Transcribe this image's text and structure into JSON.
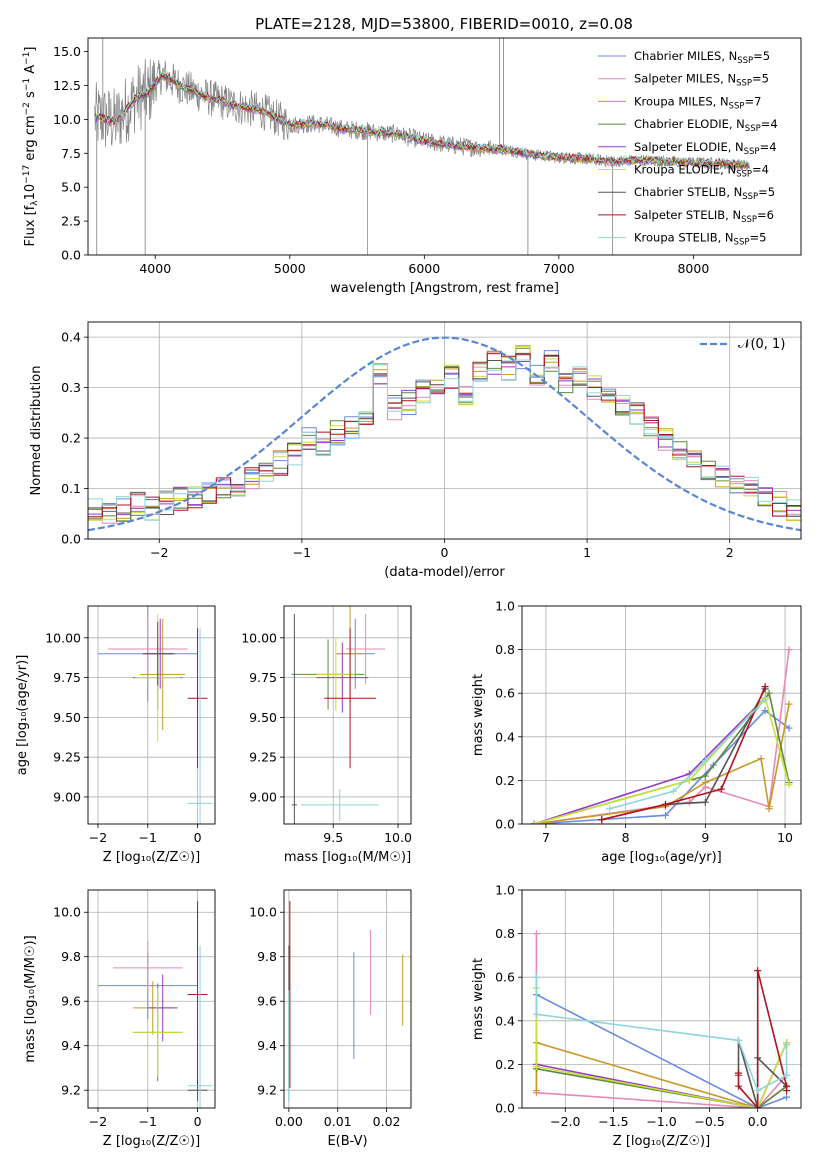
{
  "figure": {
    "title": "PLATE=2128, MJD=53800, FIBERID=0010, z=0.08"
  },
  "models": [
    {
      "name": "Chabrier MILES, N$_{SSP}$=5",
      "label_main": "Chabrier MILES, N",
      "label_sub": "SSP",
      "label_end": "=5",
      "color": "#6a8bde"
    },
    {
      "name": "Salpeter MILES, N$_{SSP}$=5",
      "label_main": "Salpeter MILES, N",
      "label_sub": "SSP",
      "label_end": "=5",
      "color": "#e68ab8"
    },
    {
      "name": "Kroupa MILES, N$_{SSP}$=7",
      "label_main": "Kroupa MILES, N",
      "label_sub": "SSP",
      "label_end": "=7",
      "color": "#c79a2a"
    },
    {
      "name": "Chabrier ELODIE, N$_{SSP}$=4",
      "label_main": "Chabrier ELODIE, N",
      "label_sub": "SSP",
      "label_end": "=4",
      "color": "#5e8a3c"
    },
    {
      "name": "Salpeter ELODIE, N$_{SSP}$=4",
      "label_main": "Salpeter ELODIE, N",
      "label_sub": "SSP",
      "label_end": "=4",
      "color": "#9a39c7"
    },
    {
      "name": "Kroupa ELODIE, N$_{SSP}$=4",
      "label_main": "Kroupa ELODIE, N",
      "label_sub": "SSP",
      "label_end": "=4",
      "color": "#c8e03a"
    },
    {
      "name": "Chabrier STELIB, N$_{SSP}$=5",
      "label_main": "Chabrier STELIB, N",
      "label_sub": "SSP",
      "label_end": "=5",
      "color": "#555555"
    },
    {
      "name": "Salpeter STELIB, N$_{SSP}$=6",
      "label_main": "Salpeter STELIB, N",
      "label_sub": "SSP",
      "label_end": "=6",
      "color": "#b0131d"
    },
    {
      "name": "Kroupa STELIB, N$_{SSP}$=5",
      "label_main": "Kroupa STELIB, N",
      "label_sub": "SSP",
      "label_end": "=5",
      "color": "#8ed6dc"
    }
  ],
  "chart_data": [
    {
      "id": "spectrum",
      "type": "line",
      "title": "PLATE=2128, MJD=53800, FIBERID=0010, z=0.08",
      "xlabel": "wavelength [Angstrom, rest frame]",
      "ylabel_main": "Flux [f",
      "ylabel_sub": "λ",
      "ylabel_rest": "10",
      "ylabel_sup1": "−17",
      "ylabel_mid": " erg cm",
      "ylabel_sup2": "−2",
      "ylabel_s": " s",
      "ylabel_sup3": "−1",
      "ylabel_a": " A",
      "ylabel_sup4": "−1",
      "ylabel_end": "]",
      "xlim": [
        3500,
        8800
      ],
      "ylim": [
        0,
        16
      ],
      "xticks": [
        4000,
        5000,
        6000,
        7000,
        8000
      ],
      "yticks": [
        0.0,
        2.5,
        5.0,
        7.5,
        10.0,
        12.5,
        15.0
      ],
      "ytick_labels": [
        "0.0",
        "2.5",
        "5.0",
        "7.5",
        "10.0",
        "12.5",
        "15.0"
      ],
      "continuum": [
        [
          3550,
          10.2
        ],
        [
          3700,
          9.8
        ],
        [
          3850,
          11.5
        ],
        [
          3950,
          12.0
        ],
        [
          4050,
          13.3
        ],
        [
          4200,
          12.4
        ],
        [
          4400,
          11.6
        ],
        [
          4600,
          11.0
        ],
        [
          4800,
          10.6
        ],
        [
          5000,
          9.6
        ],
        [
          5200,
          9.7
        ],
        [
          5400,
          9.3
        ],
        [
          5600,
          9.1
        ],
        [
          5800,
          8.9
        ],
        [
          6000,
          8.4
        ],
        [
          6200,
          8.1
        ],
        [
          6400,
          7.9
        ],
        [
          6600,
          7.8
        ],
        [
          6800,
          7.4
        ],
        [
          7000,
          7.2
        ],
        [
          7200,
          7.1
        ],
        [
          7400,
          6.9
        ],
        [
          7600,
          7.0
        ],
        [
          7800,
          6.9
        ],
        [
          8000,
          6.8
        ],
        [
          8200,
          6.75
        ],
        [
          8400,
          6.6
        ]
      ],
      "observed_color": "#808080",
      "legend_position": "upper right"
    },
    {
      "id": "residuals",
      "type": "step",
      "xlabel": "(data-model)/error",
      "ylabel": "Normed distribution",
      "xlim": [
        -2.5,
        2.5
      ],
      "ylim": [
        0,
        0.43
      ],
      "xticks": [
        -2,
        -1,
        0,
        1,
        2
      ],
      "xtick_labels": [
        "−2",
        "−1",
        "0",
        "1",
        "2"
      ],
      "yticks": [
        0.0,
        0.1,
        0.2,
        0.3,
        0.4
      ],
      "ytick_labels": [
        "0.0",
        "0.1",
        "0.2",
        "0.3",
        "0.4"
      ],
      "bin_width": 0.1,
      "bin_start": -2.5,
      "histogram": [
        0.06,
        0.05,
        0.06,
        0.07,
        0.06,
        0.07,
        0.08,
        0.08,
        0.09,
        0.1,
        0.11,
        0.12,
        0.13,
        0.15,
        0.17,
        0.2,
        0.19,
        0.21,
        0.22,
        0.24,
        0.33,
        0.26,
        0.27,
        0.29,
        0.3,
        0.32,
        0.29,
        0.33,
        0.35,
        0.34,
        0.36,
        0.33,
        0.35,
        0.31,
        0.32,
        0.3,
        0.28,
        0.26,
        0.25,
        0.22,
        0.2,
        0.18,
        0.16,
        0.14,
        0.12,
        0.11,
        0.1,
        0.08,
        0.07,
        0.06
      ],
      "gaussian_label": "𝒩(0, 1)",
      "gaussian_color": "#5b86d6",
      "legend_position": "upper right"
    },
    {
      "id": "age-vs-Z",
      "type": "scatter",
      "xlabel": "Z [log₁₀(Z/Z☉)]",
      "ylabel": "age  [log₁₀(age/yr)]",
      "xlim": [
        -2.2,
        0.35
      ],
      "ylim": [
        8.83,
        10.2
      ],
      "xticks": [
        -2,
        -1,
        0
      ],
      "xtick_labels": [
        "−2",
        "−1",
        "0"
      ],
      "yticks": [
        9.0,
        9.25,
        9.5,
        9.75,
        10.0
      ],
      "ytick_labels": [
        "9.00",
        "9.25",
        "9.50",
        "9.75",
        "10.00"
      ],
      "points": [
        {
          "model": 0,
          "x": -1.0,
          "y": 9.9,
          "xerr": 1.0,
          "yerr": 0.3
        },
        {
          "model": 1,
          "x": -1.0,
          "y": 9.93,
          "xerr": 0.8,
          "yerr": 0.22
        },
        {
          "model": 2,
          "x": -0.7,
          "y": 9.77,
          "xerr": 0.45,
          "yerr": 0.35
        },
        {
          "model": 3,
          "x": -0.8,
          "y": 9.75,
          "xerr": 0.5,
          "yerr": 0.2
        },
        {
          "model": 4,
          "x": -0.75,
          "y": 9.9,
          "xerr": 0.3,
          "yerr": 0.22
        },
        {
          "model": 5,
          "x": -0.8,
          "y": 9.75,
          "xerr": 0.45,
          "yerr": 0.4
        },
        {
          "model": 6,
          "x": -0.8,
          "y": 9.9,
          "xerr": 0.3,
          "yerr": 0.2
        },
        {
          "model": 7,
          "x": 0.0,
          "y": 9.62,
          "xerr": 0.2,
          "yerr": 0.44
        },
        {
          "model": 8,
          "x": 0.05,
          "y": 8.96,
          "xerr": 0.25,
          "yerr": 1.1
        }
      ]
    },
    {
      "id": "age-vs-mass",
      "type": "scatter",
      "xlabel": "mass [log₁₀(M/M☉)]",
      "ylabel": "",
      "xlim": [
        9.12,
        10.1
      ],
      "ylim": [
        8.83,
        10.2
      ],
      "xticks": [
        9.5,
        10.0
      ],
      "xtick_labels": [
        "9.5",
        "10.0"
      ],
      "yticks": [
        9.0,
        9.25,
        9.5,
        9.75,
        10.0
      ],
      "ytick_labels": [
        "9.00",
        "9.25",
        "9.50",
        "9.75",
        "10.00"
      ],
      "points": [
        {
          "model": 0,
          "x": 9.67,
          "y": 9.9,
          "xerr": 0.15,
          "yerr": 0.22
        },
        {
          "model": 1,
          "x": 9.75,
          "y": 9.93,
          "xerr": 0.15,
          "yerr": 0.22
        },
        {
          "model": 2,
          "x": 9.63,
          "y": 9.9,
          "xerr": 0.1,
          "yerr": 0.3
        },
        {
          "model": 3,
          "x": 9.46,
          "y": 9.77,
          "xerr": 0.28,
          "yerr": 0.22
        },
        {
          "model": 4,
          "x": 9.57,
          "y": 9.75,
          "xerr": 0.2,
          "yerr": 0.22
        },
        {
          "model": 5,
          "x": 9.52,
          "y": 9.77,
          "xerr": 0.15,
          "yerr": 0.23
        },
        {
          "model": 6,
          "x": 9.2,
          "y": 8.95,
          "xerr": 0.02,
          "yerr": 1.2
        },
        {
          "model": 7,
          "x": 9.63,
          "y": 9.62,
          "xerr": 0.2,
          "yerr": 0.44
        },
        {
          "model": 8,
          "x": 9.55,
          "y": 8.95,
          "xerr": 0.3,
          "yerr": 0.1
        }
      ]
    },
    {
      "id": "massweight-vs-age",
      "type": "line",
      "xlabel": "age  [log₁₀(age/yr)]",
      "ylabel": "mass weight",
      "xlim": [
        6.7,
        10.2
      ],
      "ylim": [
        0,
        1.0
      ],
      "xticks": [
        7,
        8,
        9,
        10
      ],
      "xtick_labels": [
        "7",
        "8",
        "9",
        "10"
      ],
      "yticks": [
        0.0,
        0.2,
        0.4,
        0.6,
        0.8,
        1.0
      ],
      "ytick_labels": [
        "0.0",
        "0.2",
        "0.4",
        "0.6",
        "0.8",
        "1.0"
      ],
      "series": [
        {
          "model": 0,
          "x": [
            6.85,
            8.5,
            9.1,
            9.75,
            10.05
          ],
          "y": [
            0.0,
            0.04,
            0.27,
            0.52,
            0.44
          ]
        },
        {
          "model": 1,
          "x": [
            6.85,
            8.8,
            9.0,
            9.8,
            10.05
          ],
          "y": [
            0.0,
            0.1,
            0.17,
            0.08,
            0.8
          ]
        },
        {
          "model": 2,
          "x": [
            6.85,
            8.5,
            9.0,
            9.7,
            9.8,
            10.05
          ],
          "y": [
            0.0,
            0.08,
            0.19,
            0.3,
            0.07,
            0.55
          ]
        },
        {
          "model": 3,
          "x": [
            6.85,
            8.8,
            9.0,
            9.8,
            10.05
          ],
          "y": [
            0.0,
            0.2,
            0.22,
            0.6,
            0.19
          ]
        },
        {
          "model": 4,
          "x": [
            6.85,
            8.8,
            9.75
          ],
          "y": [
            0.0,
            0.23,
            0.58
          ]
        },
        {
          "model": 5,
          "x": [
            6.85,
            8.8,
            9.75,
            10.05
          ],
          "y": [
            0.0,
            0.2,
            0.58,
            0.18
          ]
        },
        {
          "model": 6,
          "x": [
            7.7,
            8.5,
            9.0,
            9.75
          ],
          "y": [
            0.02,
            0.09,
            0.1,
            0.62
          ]
        },
        {
          "model": 7,
          "x": [
            7.7,
            8.5,
            9.2,
            9.75
          ],
          "y": [
            0.02,
            0.09,
            0.16,
            0.63
          ]
        },
        {
          "model": 8,
          "x": [
            7.8,
            8.6,
            9.0,
            9.75
          ],
          "y": [
            0.07,
            0.15,
            0.29,
            0.57
          ]
        }
      ]
    },
    {
      "id": "mass-vs-Z",
      "type": "scatter",
      "xlabel": "Z [log₁₀(Z/Z☉)]",
      "ylabel": "mass [log₁₀(M/M☉)]",
      "xlim": [
        -2.2,
        0.35
      ],
      "ylim": [
        9.12,
        10.1
      ],
      "xticks": [
        -2,
        -1,
        0
      ],
      "xtick_labels": [
        "−2",
        "−1",
        "0"
      ],
      "yticks": [
        9.2,
        9.4,
        9.6,
        9.8,
        10.0
      ],
      "ytick_labels": [
        "9.2",
        "9.4",
        "9.6",
        "9.8",
        "10.0"
      ],
      "points": [
        {
          "model": 0,
          "x": -1.0,
          "y": 9.67,
          "xerr": 1.0,
          "yerr": 0.15
        },
        {
          "model": 1,
          "x": -1.0,
          "y": 9.75,
          "xerr": 0.7,
          "yerr": 0.12
        },
        {
          "model": 2,
          "x": -0.9,
          "y": 9.57,
          "xerr": 0.4,
          "yerr": 0.12
        },
        {
          "model": 3,
          "x": -0.8,
          "y": 9.46,
          "xerr": 0.5,
          "yerr": 0.22
        },
        {
          "model": 4,
          "x": -0.7,
          "y": 9.57,
          "xerr": 0.3,
          "yerr": 0.15
        },
        {
          "model": 5,
          "x": -0.8,
          "y": 9.46,
          "xerr": 0.5,
          "yerr": 0.2
        },
        {
          "model": 6,
          "x": 0.0,
          "y": 9.2,
          "xerr": 0.2,
          "yerr": 0.05
        },
        {
          "model": 7,
          "x": 0.0,
          "y": 9.63,
          "xerr": 0.2,
          "yerr": 0.42
        },
        {
          "model": 8,
          "x": 0.05,
          "y": 9.22,
          "xerr": 0.25,
          "yerr": 0.63
        }
      ]
    },
    {
      "id": "mass-vs-EBV",
      "type": "scatter",
      "xlabel": "E(B-V)",
      "ylabel": "",
      "xlim": [
        -0.001,
        0.025
      ],
      "ylim": [
        9.12,
        10.1
      ],
      "xticks": [
        0.0,
        0.01,
        0.02
      ],
      "xtick_labels": [
        "0.00",
        "0.01",
        "0.02"
      ],
      "yticks": [
        9.2,
        9.4,
        9.6,
        9.8,
        10.0
      ],
      "ytick_labels": [
        "9.2",
        "9.4",
        "9.6",
        "9.8",
        "10.0"
      ],
      "points": [
        {
          "model": 0,
          "x": 0.0133,
          "y": 9.58,
          "xerr": 0,
          "yerr": 0.24
        },
        {
          "model": 1,
          "x": 0.0167,
          "y": 9.73,
          "xerr": 0,
          "yerr": 0.19
        },
        {
          "model": 2,
          "x": 0.0233,
          "y": 9.65,
          "xerr": 0,
          "yerr": 0.16
        },
        {
          "model": 6,
          "x": 0.0,
          "y": 9.5,
          "xerr": 0,
          "yerr": 0.35
        },
        {
          "model": 7,
          "x": 0.0002,
          "y": 9.63,
          "xerr": 0,
          "yerr": 0.42
        },
        {
          "model": 8,
          "x": 0.0,
          "y": 9.4,
          "xerr": 0,
          "yerr": 0.25
        }
      ]
    },
    {
      "id": "massweight-vs-Z",
      "type": "line",
      "xlabel": "Z [log₁₀(Z/Z☉)]",
      "ylabel": "mass weight",
      "xlim": [
        -2.45,
        0.45
      ],
      "ylim": [
        0,
        1.0
      ],
      "xticks": [
        -2.0,
        -1.5,
        -1.0,
        -0.5,
        0.0
      ],
      "xtick_labels": [
        "−2.0",
        "−1.5",
        "−1.0",
        "−0.5",
        "0.0"
      ],
      "yticks": [
        0.0,
        0.2,
        0.4,
        0.6,
        0.8,
        1.0
      ],
      "ytick_labels": [
        "0.0",
        "0.2",
        "0.4",
        "0.6",
        "0.8",
        "1.0"
      ],
      "series": [
        {
          "model": 0,
          "x": [
            -2.3,
            0.0,
            0.3
          ],
          "y": [
            0.52,
            0.0,
            0.05
          ]
        },
        {
          "model": 1,
          "x": [
            -2.3,
            -2.3,
            0.0,
            0.3
          ],
          "y": [
            0.8,
            0.07,
            0.0,
            0.15
          ]
        },
        {
          "model": 2,
          "x": [
            -2.3,
            -2.3,
            0.0,
            0.3
          ],
          "y": [
            0.08,
            0.3,
            0.0,
            0.1
          ]
        },
        {
          "model": 3,
          "x": [
            -2.3,
            0.0,
            0.3
          ],
          "y": [
            0.18,
            0.0,
            0.1
          ]
        },
        {
          "model": 4,
          "x": [
            -2.3,
            0.0,
            0.3
          ],
          "y": [
            0.2,
            0.0,
            0.3
          ]
        },
        {
          "model": 5,
          "x": [
            -2.3,
            -2.3,
            0.0,
            0.3
          ],
          "y": [
            0.55,
            0.19,
            0.0,
            0.3
          ]
        },
        {
          "model": 6,
          "x": [
            -0.2,
            -0.2,
            0.0,
            0.0,
            0.3
          ],
          "y": [
            0.15,
            0.31,
            0.0,
            0.23,
            0.1
          ]
        },
        {
          "model": 7,
          "x": [
            -0.2,
            -0.2,
            0.0,
            0.0,
            0.3,
            0.3
          ],
          "y": [
            0.16,
            0.1,
            0.0,
            0.63,
            0.1,
            0.08
          ]
        },
        {
          "model": 8,
          "x": [
            -2.3,
            -2.3,
            -0.2,
            0.0,
            0.3,
            0.3
          ],
          "y": [
            0.6,
            0.43,
            0.31,
            0.08,
            0.15,
            0.29
          ]
        }
      ]
    }
  ]
}
